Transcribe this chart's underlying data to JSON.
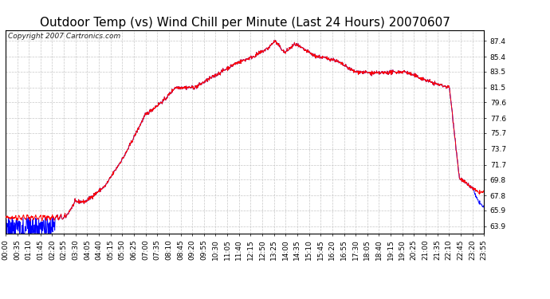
{
  "title": "Outdoor Temp (vs) Wind Chill per Minute (Last 24 Hours) 20070607",
  "copyright_text": "Copyright 2007 Cartronics.com",
  "background_color": "#ffffff",
  "plot_bg_color": "#ffffff",
  "grid_color": "#c8c8c8",
  "line_color_red": "#ff0000",
  "line_color_blue": "#0000ff",
  "yticks": [
    63.9,
    65.9,
    67.8,
    69.8,
    71.7,
    73.7,
    75.7,
    77.6,
    79.6,
    81.5,
    83.5,
    85.4,
    87.4
  ],
  "ylim": [
    63.0,
    88.8
  ],
  "xtick_labels": [
    "00:00",
    "00:35",
    "01:10",
    "01:45",
    "02:20",
    "02:55",
    "03:30",
    "04:05",
    "04:40",
    "05:15",
    "05:50",
    "06:25",
    "07:00",
    "07:35",
    "08:10",
    "08:45",
    "09:20",
    "09:55",
    "10:30",
    "11:05",
    "11:40",
    "12:15",
    "12:50",
    "13:25",
    "14:00",
    "14:35",
    "15:10",
    "15:45",
    "16:20",
    "16:55",
    "17:30",
    "18:05",
    "18:40",
    "19:15",
    "19:50",
    "20:25",
    "21:00",
    "21:35",
    "22:10",
    "22:45",
    "23:20",
    "23:55"
  ],
  "title_fontsize": 11,
  "copyright_fontsize": 6.5,
  "tick_fontsize": 6.5,
  "figsize": [
    6.9,
    3.75
  ],
  "dpi": 100
}
